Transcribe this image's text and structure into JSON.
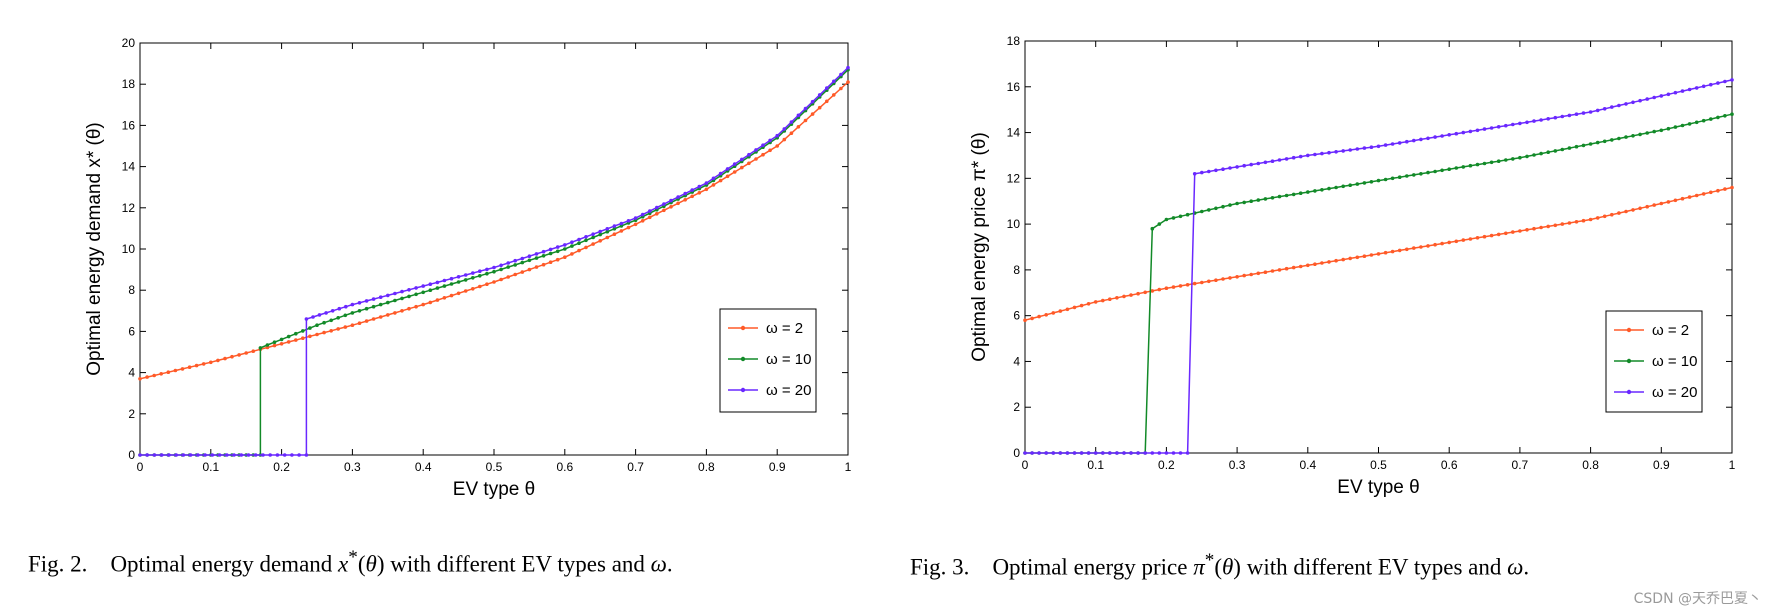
{
  "chart_data": [
    {
      "type": "line",
      "title": "",
      "xlabel": "EV type θ",
      "ylabel": "Optimal energy demand x* (θ)",
      "xlim": [
        0,
        1
      ],
      "ylim": [
        0,
        20
      ],
      "xticks": [
        0,
        0.1,
        0.2,
        0.3,
        0.4,
        0.5,
        0.6,
        0.7,
        0.8,
        0.9,
        1
      ],
      "yticks": [
        0,
        2,
        4,
        6,
        8,
        10,
        12,
        14,
        16,
        18,
        20
      ],
      "legend": "bottom-right",
      "series": [
        {
          "name": "ω = 2",
          "color": "#ff5a28",
          "x": [
            0,
            0.1,
            0.2,
            0.3,
            0.4,
            0.5,
            0.6,
            0.7,
            0.8,
            0.9,
            1
          ],
          "y": [
            3.7,
            4.5,
            5.4,
            6.3,
            7.3,
            8.4,
            9.6,
            11.2,
            12.9,
            15.0,
            18.1
          ]
        },
        {
          "name": "ω = 10",
          "color": "#128a28",
          "x": [
            0,
            0.17,
            0.17,
            0.25,
            0.3,
            0.4,
            0.5,
            0.6,
            0.7,
            0.8,
            0.9,
            1
          ],
          "y": [
            0,
            0,
            5.2,
            6.3,
            6.9,
            7.9,
            8.9,
            10.0,
            11.4,
            13.1,
            15.4,
            18.7
          ]
        },
        {
          "name": "ω = 20",
          "color": "#6a28ff",
          "x": [
            0,
            0.235,
            0.235,
            0.3,
            0.4,
            0.5,
            0.6,
            0.7,
            0.8,
            0.9,
            1
          ],
          "y": [
            0,
            0,
            6.6,
            7.3,
            8.2,
            9.1,
            10.2,
            11.5,
            13.2,
            15.5,
            18.8
          ]
        }
      ]
    },
    {
      "type": "line",
      "title": "",
      "xlabel": "EV type θ",
      "ylabel": "Optimal energy price π* (θ)",
      "xlim": [
        0,
        1
      ],
      "ylim": [
        0,
        18
      ],
      "xticks": [
        0,
        0.1,
        0.2,
        0.3,
        0.4,
        0.5,
        0.6,
        0.7,
        0.8,
        0.9,
        1
      ],
      "yticks": [
        0,
        2,
        4,
        6,
        8,
        10,
        12,
        14,
        16,
        18
      ],
      "legend": "bottom-right",
      "series": [
        {
          "name": "ω = 2",
          "color": "#ff5a28",
          "x": [
            0,
            0.1,
            0.2,
            0.3,
            0.4,
            0.5,
            0.6,
            0.7,
            0.8,
            0.9,
            1
          ],
          "y": [
            5.8,
            6.6,
            7.2,
            7.7,
            8.2,
            8.7,
            9.2,
            9.7,
            10.2,
            10.9,
            11.6
          ]
        },
        {
          "name": "ω = 10",
          "color": "#128a28",
          "x": [
            0,
            0.17,
            0.18,
            0.2,
            0.3,
            0.4,
            0.5,
            0.6,
            0.7,
            0.8,
            0.9,
            1
          ],
          "y": [
            0,
            0,
            9.8,
            10.2,
            10.9,
            11.4,
            11.9,
            12.4,
            12.9,
            13.5,
            14.1,
            14.8
          ]
        },
        {
          "name": "ω = 20",
          "color": "#6a28ff",
          "x": [
            0,
            0.23,
            0.24,
            0.3,
            0.4,
            0.5,
            0.6,
            0.7,
            0.8,
            0.9,
            1
          ],
          "y": [
            0,
            0,
            12.2,
            12.5,
            13.0,
            13.4,
            13.9,
            14.4,
            14.9,
            15.6,
            16.3
          ]
        }
      ]
    }
  ],
  "captions": {
    "fig2": {
      "label": "Fig. 2.",
      "text_a": "Optimal energy demand ",
      "symbol": "x",
      "sup": "*",
      "arg_open": "(",
      "arg": "θ",
      "arg_close": ")",
      "text_b": " with different EV types and ",
      "omega": "ω",
      "period": "."
    },
    "fig3": {
      "label": "Fig. 3.",
      "text_a": "Optimal energy price ",
      "symbol": "π",
      "sup": "*",
      "arg_open": "(",
      "arg": "θ",
      "arg_close": ")",
      "text_b": " with different EV types and ",
      "omega": "ω",
      "period": "."
    }
  },
  "watermark": "CSDN @天乔巴夏丶"
}
